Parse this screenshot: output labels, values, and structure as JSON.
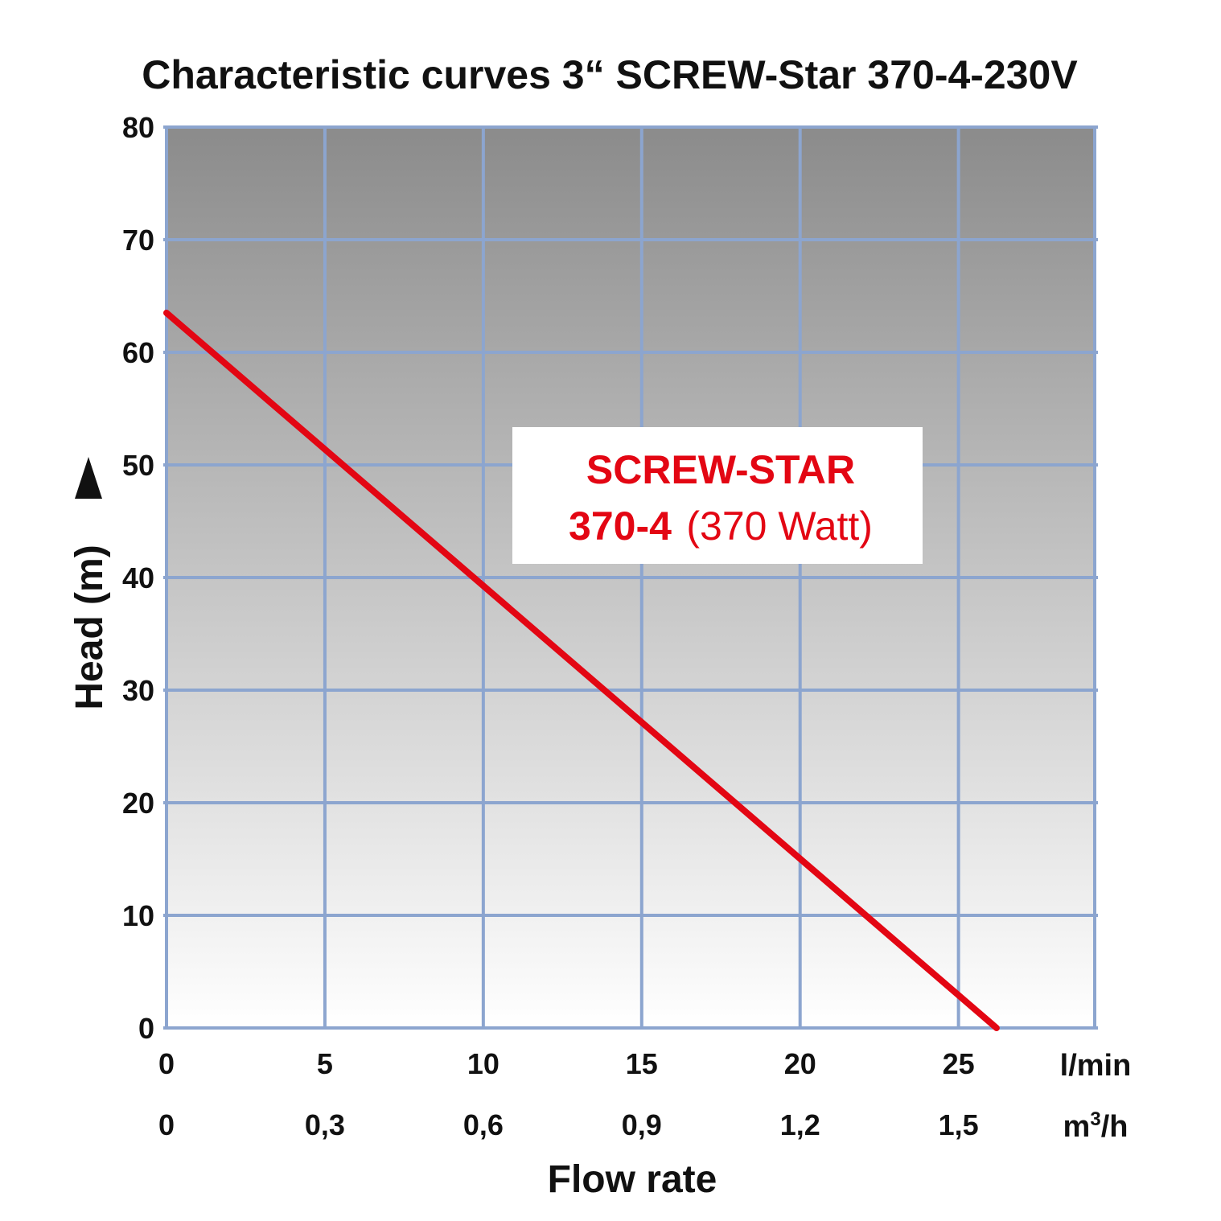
{
  "chart_data": {
    "type": "line",
    "title": "Characteristic curves 3“ SCREW-Star 370-4-230V",
    "xlabel": "Flow rate",
    "ylabel": "Head (m)",
    "x_unit_primary": "l/min",
    "x_unit_secondary_base": "m",
    "x_unit_secondary_sup": "3",
    "x_unit_secondary_tail": "/h",
    "x_ticks_primary": [
      "0",
      "5",
      "10",
      "15",
      "20",
      "25"
    ],
    "x_ticks_secondary": [
      "0",
      "0,3",
      "0,6",
      "0,9",
      "1,2",
      "1,5"
    ],
    "y_ticks": [
      "0",
      "10",
      "20",
      "30",
      "40",
      "50",
      "60",
      "70",
      "80"
    ],
    "xlim": [
      0,
      29.3
    ],
    "ylim": [
      0,
      80
    ],
    "grid": true,
    "series": [
      {
        "name_bold": "370-4",
        "name_rest": "(370 Watt)",
        "x": [
          0,
          26.2
        ],
        "y": [
          63.5,
          0
        ],
        "color": "#e30613"
      }
    ],
    "annotation_line1": "SCREW-STAR",
    "colors": {
      "curve": "#e30613",
      "grid": "#8ca5cf",
      "background_top": "#8b8b8b",
      "background_bottom": "#ffffff",
      "label_box": "#ffffff"
    }
  }
}
